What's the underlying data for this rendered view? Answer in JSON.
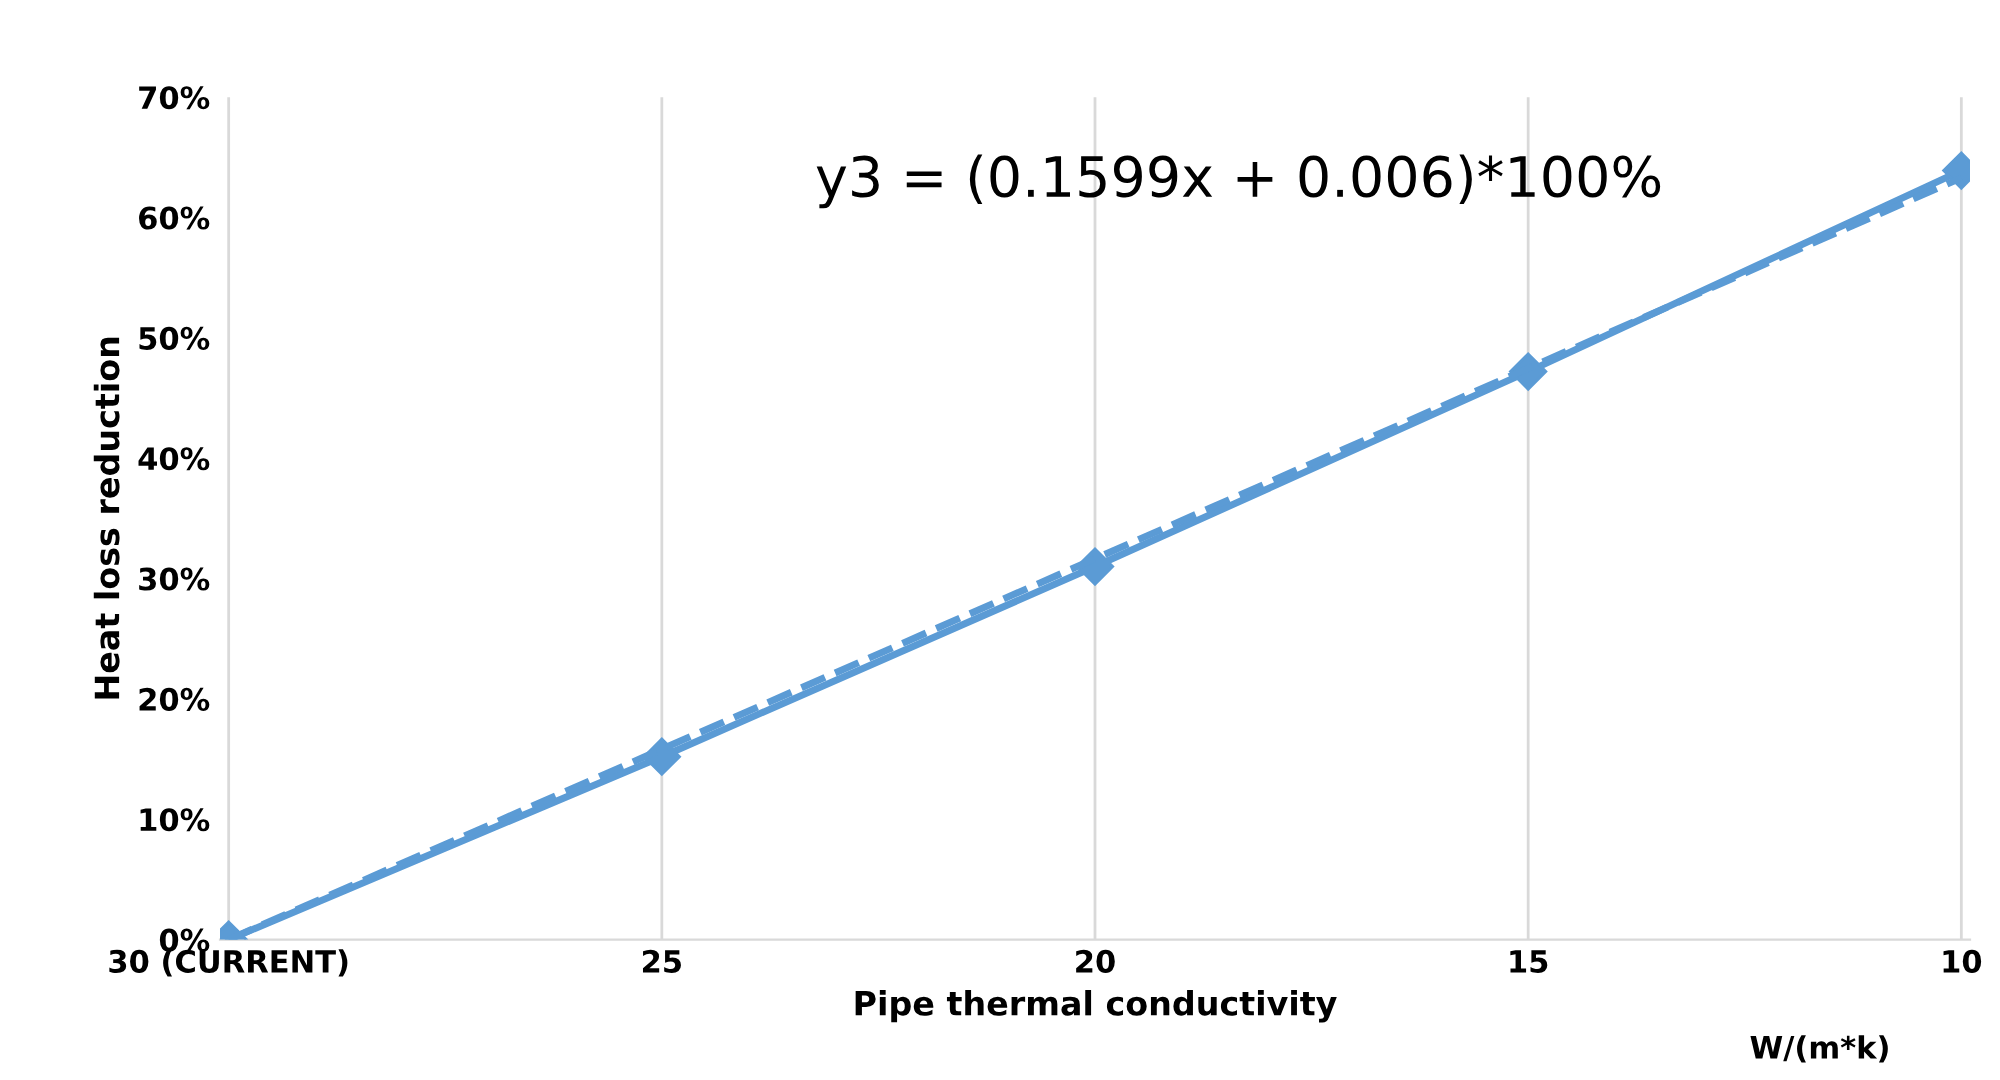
{
  "chart_data": {
    "type": "line",
    "xlabel": "Pipe thermal conductivity",
    "ylabel": "Heat loss reduction",
    "categories": [
      "30 (CURRENT)",
      "25",
      "20",
      "15",
      "10"
    ],
    "series": [
      {
        "color": "#5b9bd5",
        "values": [
          0,
          15.2,
          31.0,
          47.2,
          63.9
        ],
        "marker": "diamond",
        "line_style": "solid"
      },
      {
        "type": "line",
        "x": [
          "30 (CURRENT)",
          "10"
        ],
        "color": "#5b9bd5",
        "values": [
          0,
          63.3
        ],
        "marker": "none",
        "line_style": "dashed"
      }
    ],
    "ylim": [
      0,
      70
    ],
    "yticks": [
      {
        "value": 0,
        "label": "0%"
      },
      {
        "value": 10,
        "label": "10%"
      },
      {
        "value": 20,
        "label": "20%"
      },
      {
        "value": 30,
        "label": "30%"
      },
      {
        "value": 40,
        "label": "40%"
      },
      {
        "value": 50,
        "label": "50%"
      },
      {
        "value": 60,
        "label": "60%"
      },
      {
        "value": 70,
        "label": "70%"
      }
    ],
    "grid": "x",
    "annotations": [
      "y3 = (0.1599x + 0.006)*100%",
      "W/(m*k)"
    ]
  }
}
